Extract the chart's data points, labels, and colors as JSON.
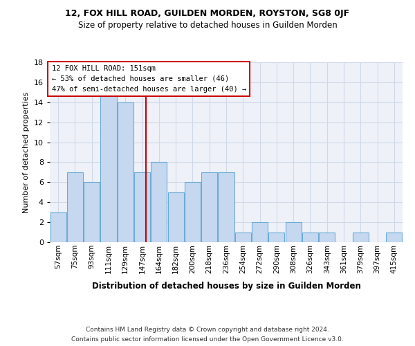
{
  "title": "12, FOX HILL ROAD, GUILDEN MORDEN, ROYSTON, SG8 0JF",
  "subtitle": "Size of property relative to detached houses in Guilden Morden",
  "xlabel": "Distribution of detached houses by size in Guilden Morden",
  "ylabel": "Number of detached properties",
  "categories": [
    "57sqm",
    "75sqm",
    "93sqm",
    "111sqm",
    "129sqm",
    "147sqm",
    "164sqm",
    "182sqm",
    "200sqm",
    "218sqm",
    "236sqm",
    "254sqm",
    "272sqm",
    "290sqm",
    "308sqm",
    "326sqm",
    "343sqm",
    "361sqm",
    "379sqm",
    "397sqm",
    "415sqm"
  ],
  "values": [
    3,
    7,
    6,
    15,
    14,
    7,
    8,
    5,
    6,
    7,
    7,
    1,
    2,
    1,
    2,
    1,
    1,
    0,
    1,
    0,
    1
  ],
  "bar_color": "#c5d8f0",
  "bar_edge_color": "#6aacd4",
  "annotation_text_line1": "12 FOX HILL ROAD: 151sqm",
  "annotation_text_line2": "← 53% of detached houses are smaller (46)",
  "annotation_text_line3": "47% of semi-detached houses are larger (40) →",
  "annotation_box_color": "#ffffff",
  "annotation_border_color": "#cc0000",
  "vline_color": "#cc0000",
  "grid_color": "#d0d8e8",
  "bg_color": "#eef2f8",
  "footer1": "Contains HM Land Registry data © Crown copyright and database right 2024.",
  "footer2": "Contains public sector information licensed under the Open Government Licence v3.0.",
  "ylim": [
    0,
    18
  ],
  "yticks": [
    0,
    2,
    4,
    6,
    8,
    10,
    12,
    14,
    16,
    18
  ]
}
